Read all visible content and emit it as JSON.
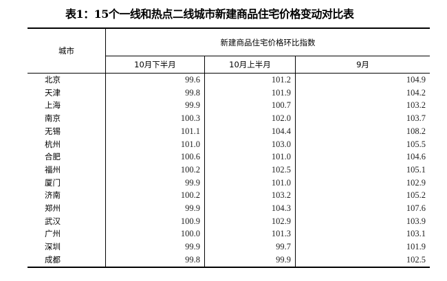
{
  "title": "表1：15个一线和热点二线城市新建商品住宅价格变动对比表",
  "header": {
    "city": "城市",
    "group": "新建商品住宅价格环比指数",
    "columns": [
      "10月下半月",
      "10月上半月",
      "9月"
    ]
  },
  "rows": [
    [
      "北京",
      "99.6",
      "101.2",
      "104.9"
    ],
    [
      "天津",
      "99.8",
      "101.9",
      "104.2"
    ],
    [
      "上海",
      "99.9",
      "100.7",
      "103.2"
    ],
    [
      "南京",
      "100.3",
      "102.0",
      "103.7"
    ],
    [
      "无锡",
      "101.1",
      "104.4",
      "108.2"
    ],
    [
      "杭州",
      "101.0",
      "103.0",
      "105.5"
    ],
    [
      "合肥",
      "100.6",
      "101.0",
      "104.6"
    ],
    [
      "福州",
      "100.2",
      "102.5",
      "105.1"
    ],
    [
      "厦门",
      "99.9",
      "101.0",
      "102.9"
    ],
    [
      "济南",
      "100.2",
      "103.2",
      "105.2"
    ],
    [
      "郑州",
      "99.9",
      "104.3",
      "107.6"
    ],
    [
      "武汉",
      "100.9",
      "102.9",
      "103.9"
    ],
    [
      "广州",
      "100.0",
      "101.3",
      "103.1"
    ],
    [
      "深圳",
      "99.9",
      "99.7",
      "101.9"
    ],
    [
      "成都",
      "99.8",
      "99.9",
      "102.5"
    ]
  ]
}
